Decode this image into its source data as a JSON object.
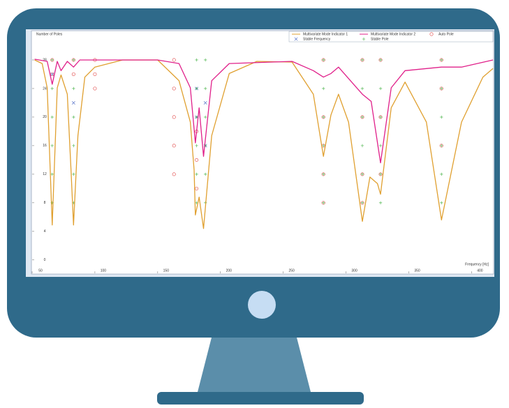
{
  "chart_data": {
    "type": "line",
    "title": "Number of Poles",
    "x_label": "Frequency [Hz]",
    "xlim": [
      50,
      417
    ],
    "ylim": [
      -1,
      32
    ],
    "xticks": [
      50,
      100,
      150,
      200,
      250,
      300,
      350,
      400
    ],
    "yticks": [
      0,
      4,
      8,
      12,
      16,
      20,
      24,
      28
    ],
    "grid": false,
    "legend": "top-right",
    "series": [
      {
        "name": "Multivariate Mode Indicator 1",
        "type": "line",
        "color": "#e0a030",
        "x": [
          52,
          58,
          62,
          66,
          70,
          73,
          78,
          81,
          83,
          86.5,
          92,
          100,
          122,
          150,
          167,
          176,
          179,
          180,
          183,
          186.5,
          193,
          207,
          229,
          257,
          274,
          282,
          288,
          294,
          302,
          313,
          319,
          325,
          327.5,
          336,
          347,
          364,
          376,
          392,
          409,
          417
        ],
        "values": [
          28.0,
          27.5,
          24.1,
          4.9,
          24.1,
          25.9,
          23.2,
          12.6,
          4.9,
          17.4,
          25.6,
          27.0,
          28.0,
          28.0,
          25.1,
          19.3,
          12.6,
          6.3,
          8.8,
          4.4,
          17.4,
          26.1,
          27.8,
          27.7,
          23.2,
          14.5,
          20.3,
          23.2,
          19.3,
          5.4,
          11.6,
          10.7,
          9.2,
          21.3,
          24.9,
          19.3,
          5.6,
          19.3,
          25.6,
          26.8
        ]
      },
      {
        "name": "Multivariate Mode Indicator 2",
        "type": "line",
        "color": "#e0208a",
        "x": [
          52,
          62,
          66,
          70,
          73,
          78,
          83,
          88,
          150,
          167,
          176,
          180,
          183,
          186.5,
          193,
          207,
          257,
          274,
          282,
          288,
          294,
          313,
          320,
          327.5,
          336,
          347,
          376,
          392,
          417
        ],
        "values": [
          28.1,
          27.8,
          24.6,
          27.8,
          26.5,
          27.8,
          27.0,
          28.0,
          28.0,
          27.5,
          24.1,
          16.4,
          21.3,
          14.5,
          25.1,
          27.5,
          27.8,
          26.5,
          25.6,
          26.1,
          27.0,
          23.2,
          22.2,
          13.6,
          24.1,
          26.5,
          27.0,
          27.0,
          28.0
        ]
      },
      {
        "name": "Auto Pole",
        "type": "scatter",
        "marker": "circle",
        "color": "#e04040",
        "x": [
          66,
          66,
          83,
          83,
          100,
          100,
          100,
          163,
          163,
          163,
          163,
          163,
          181,
          181,
          181,
          282,
          282,
          282,
          282,
          282,
          313,
          313,
          313,
          313,
          327.5,
          327.5,
          327.5,
          376,
          376,
          376
        ],
        "values": [
          26,
          28,
          26,
          28,
          24,
          26,
          28,
          12,
          16,
          20,
          24,
          28,
          10,
          14,
          18,
          8,
          12,
          16,
          20,
          28,
          8,
          12,
          20,
          28,
          12,
          20,
          28,
          16,
          24,
          28
        ]
      },
      {
        "name": "Stable Frequency",
        "type": "scatter",
        "marker": "x",
        "color": "#4060c0",
        "x": [
          66,
          83,
          181,
          181,
          188,
          188
        ],
        "values": [
          26,
          22,
          20,
          24,
          16,
          22
        ]
      },
      {
        "name": "Stable Pole",
        "type": "scatter",
        "marker": "plus",
        "color": "#40b040",
        "x": [
          66,
          66,
          66,
          66,
          66,
          66,
          83,
          83,
          83,
          83,
          83,
          83,
          181,
          181,
          181,
          181,
          181,
          181,
          188,
          188,
          188,
          188,
          188,
          188,
          282,
          282,
          282,
          282,
          282,
          282,
          313,
          313,
          313,
          313,
          313,
          313,
          327.5,
          327.5,
          327.5,
          327.5,
          327.5,
          327.5,
          376,
          376,
          376,
          376,
          376,
          376
        ],
        "values": [
          8,
          12,
          16,
          20,
          24,
          28,
          8,
          12,
          16,
          20,
          24,
          28,
          8,
          12,
          16,
          20,
          24,
          28,
          8,
          12,
          16,
          20,
          24,
          28,
          8,
          12,
          16,
          20,
          24,
          28,
          8,
          12,
          16,
          20,
          24,
          28,
          8,
          12,
          16,
          20,
          24,
          28,
          8,
          12,
          16,
          20,
          24,
          28
        ]
      }
    ]
  }
}
